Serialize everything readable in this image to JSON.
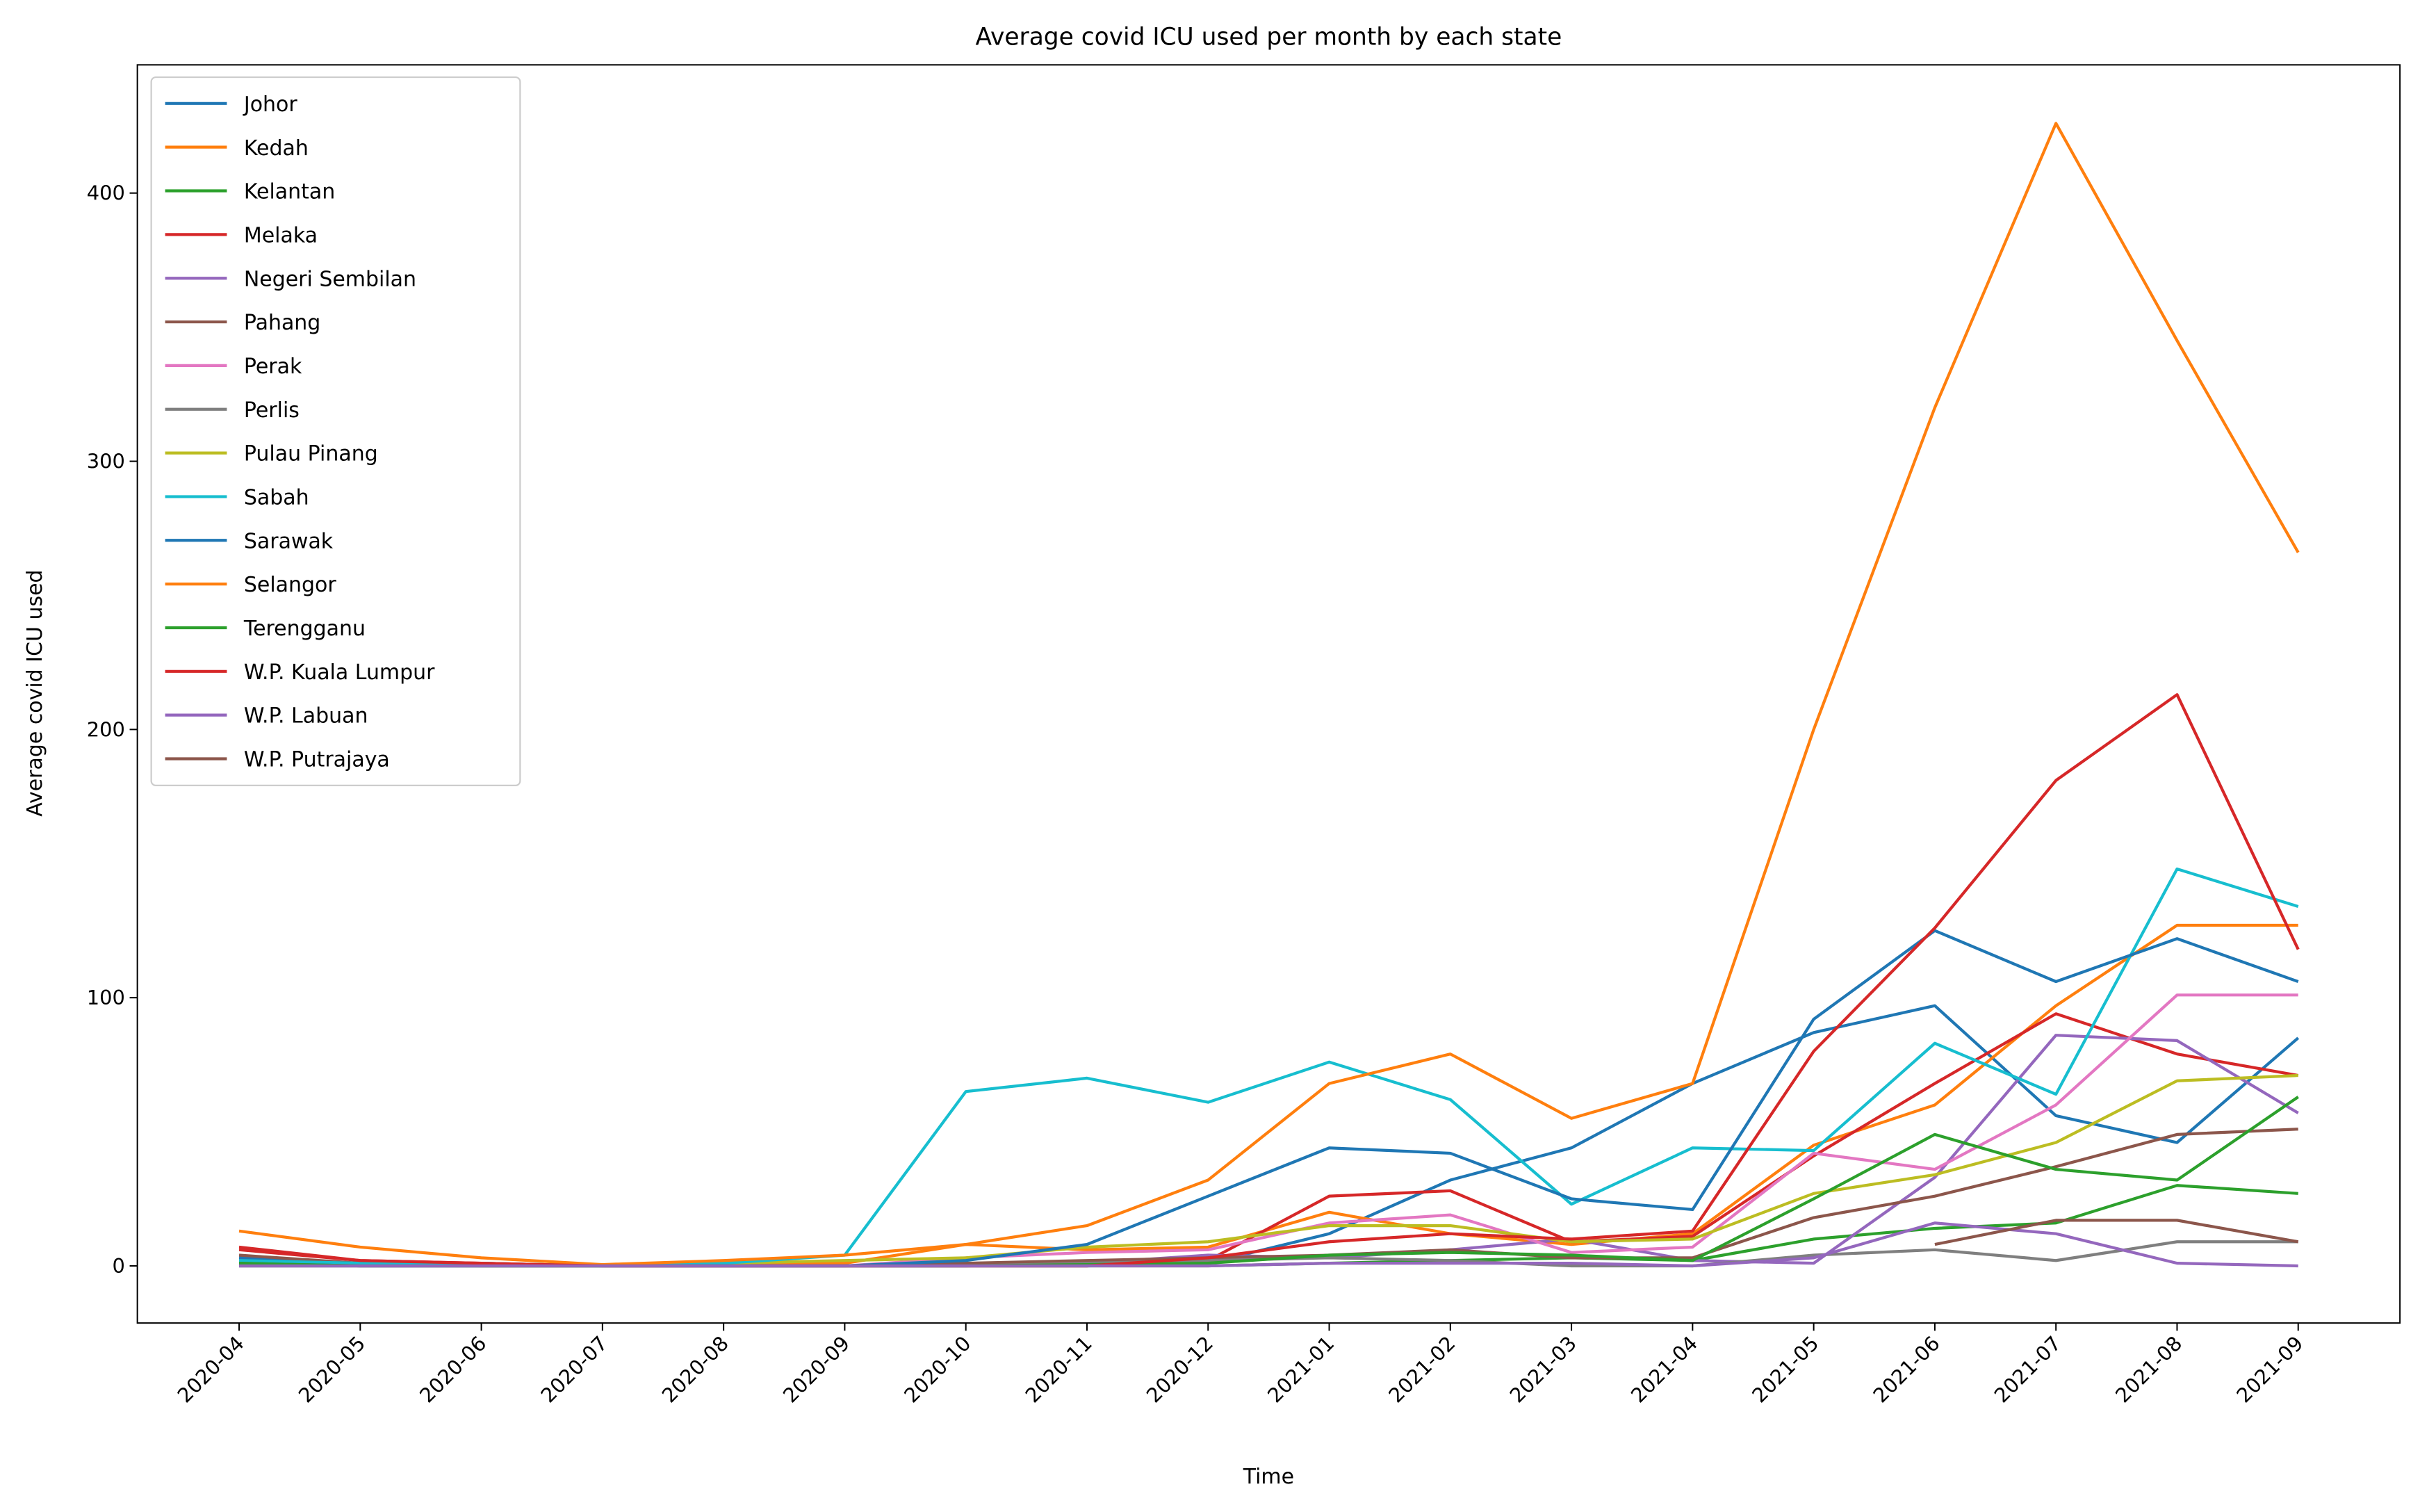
{
  "chart_data": {
    "type": "line",
    "title": "Average covid ICU used per month by each state",
    "x_label": "Time",
    "y_label": "Average covid ICU used",
    "categories": [
      "2020-04",
      "2020-05",
      "2020-06",
      "2020-07",
      "2020-08",
      "2020-09",
      "2020-10",
      "2020-11",
      "2020-12",
      "2021-01",
      "2021-02",
      "2021-03",
      "2021-04",
      "2021-05",
      "2021-06",
      "2021-07",
      "2021-08",
      "2021-09"
    ],
    "ylim": [
      -21.3,
      447.8
    ],
    "yticks": [
      0,
      100,
      200,
      300,
      400
    ],
    "legend": "upper left",
    "series": [
      {
        "name": "Johor",
        "color": "#1f77b4",
        "values": [
          3,
          1,
          1,
          0,
          0,
          0,
          0,
          0,
          1,
          12,
          32,
          44,
          68,
          87,
          97,
          56,
          46,
          85
        ]
      },
      {
        "name": "Kedah",
        "color": "#ff7f0e",
        "values": [
          1,
          1,
          0,
          0,
          0,
          1,
          8,
          6,
          7,
          20,
          12,
          8,
          12,
          45,
          60,
          97,
          127,
          127
        ]
      },
      {
        "name": "Kelantan",
        "color": "#2ca02c",
        "values": [
          0,
          0,
          0,
          0,
          0,
          0,
          0,
          0,
          0,
          1,
          2,
          3,
          2,
          10,
          14,
          16,
          30,
          27
        ]
      },
      {
        "name": "Melaka",
        "color": "#d62728",
        "values": [
          6,
          2,
          1,
          0,
          0,
          0,
          0,
          0,
          2,
          26,
          28,
          9,
          11,
          41,
          68,
          94,
          79,
          71
        ]
      },
      {
        "name": "Negeri Sembilan",
        "color": "#9467bd",
        "values": [
          0,
          0,
          0,
          0,
          0,
          0,
          0,
          1,
          4,
          3,
          6,
          10,
          2,
          1,
          33,
          86,
          84,
          57
        ]
      },
      {
        "name": "Pahang",
        "color": "#8c564b",
        "values": [
          4,
          1,
          0,
          0,
          0,
          0,
          1,
          2,
          3,
          4,
          6,
          3,
          3,
          18,
          26,
          37,
          49,
          51
        ]
      },
      {
        "name": "Perak",
        "color": "#e377c2",
        "values": [
          1,
          0,
          0,
          0,
          0,
          0,
          3,
          5,
          6,
          16,
          19,
          5,
          7,
          42,
          36,
          60,
          101,
          101
        ]
      },
      {
        "name": "Perlis",
        "color": "#7f7f7f",
        "values": [
          0,
          0,
          0,
          0,
          0,
          0,
          0,
          1,
          2,
          3,
          2,
          0,
          0,
          4,
          6,
          2,
          9,
          9
        ]
      },
      {
        "name": "Pulau Pinang",
        "color": "#bcbd22",
        "values": [
          1,
          1,
          0,
          0,
          1,
          2,
          3,
          7,
          9,
          15,
          15,
          9,
          10,
          27,
          34,
          46,
          69,
          71
        ]
      },
      {
        "name": "Sabah",
        "color": "#17becf",
        "values": [
          2,
          1,
          1,
          0,
          1,
          4,
          65,
          70,
          61,
          76,
          62,
          23,
          44,
          43,
          83,
          64,
          148,
          134
        ]
      },
      {
        "name": "Sarawak",
        "color": "#1f77b4",
        "values": [
          1,
          0,
          0,
          0,
          0,
          0,
          2,
          8,
          26,
          44,
          42,
          25,
          21,
          92,
          125,
          106,
          122,
          106
        ]
      },
      {
        "name": "Selangor",
        "color": "#ff7f0e",
        "values": [
          13,
          7,
          3,
          0.5,
          2,
          4,
          8,
          15,
          32,
          68,
          79,
          55,
          68,
          200,
          320,
          426,
          345,
          266
        ]
      },
      {
        "name": "Terengganu",
        "color": "#2ca02c",
        "values": [
          1,
          0,
          0,
          0,
          0,
          0,
          0,
          0.5,
          1,
          4,
          5,
          4,
          2,
          25,
          49,
          36,
          32,
          63
        ]
      },
      {
        "name": "W.P. Kuala Lumpur",
        "color": "#d62728",
        "values": [
          7,
          2,
          1,
          0,
          0,
          0,
          0,
          0,
          3,
          9,
          12,
          10,
          13,
          80,
          126,
          181,
          213,
          118
        ]
      },
      {
        "name": "W.P. Labuan",
        "color": "#9467bd",
        "values": [
          0,
          0,
          0,
          0,
          0,
          0,
          0,
          0,
          0,
          1,
          1,
          1,
          0,
          3,
          16,
          12,
          1,
          0
        ]
      },
      {
        "name": "W.P. Putrajaya",
        "color": "#8c564b",
        "values": [
          null,
          null,
          null,
          null,
          null,
          null,
          null,
          null,
          null,
          null,
          null,
          null,
          null,
          null,
          8,
          17,
          17,
          9
        ]
      }
    ]
  }
}
